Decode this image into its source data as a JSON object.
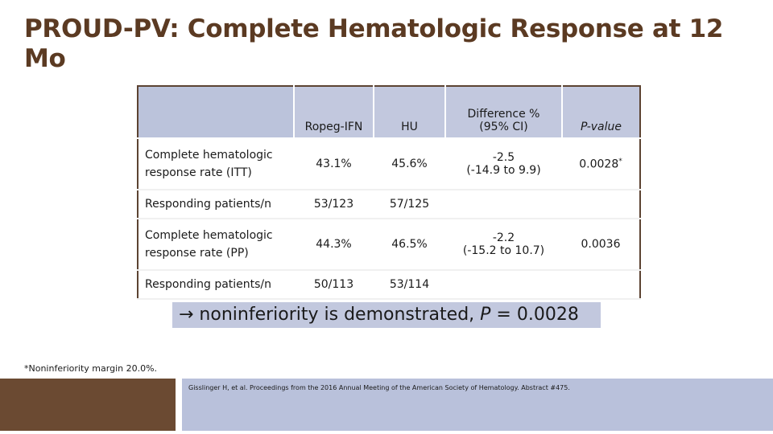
{
  "slide": {
    "title": "PROUD-PV: Complete Hematologic Response at 12 Mo"
  },
  "table": {
    "headers": {
      "col1": "Ropeg-IFN",
      "col2": "HU",
      "col3_line1": "Difference %",
      "col3_line2": "(95% CI)",
      "col4": "P-value"
    },
    "rows": {
      "itt_label_line1": "Complete hematologic",
      "itt_label_line2": "response rate  (ITT)",
      "itt_ropeg": "43.1%",
      "itt_hu": "45.6%",
      "itt_diff_line1": "-2.5",
      "itt_diff_line2": "(-14.9 to 9.9)",
      "itt_p": "0.0028",
      "itt_p_mark": "*",
      "resp1_label": "Responding patients/n",
      "resp1_ropeg": "53/123",
      "resp1_hu": "57/125",
      "pp_label_line1": "Complete hematologic",
      "pp_label_line2": "response rate (PP)",
      "pp_ropeg": "44.3%",
      "pp_hu": "46.5%",
      "pp_diff_line1": "-2.2",
      "pp_diff_line2": "(-15.2 to 10.7)",
      "pp_p": "0.0036",
      "resp2_label": "Responding patients/n",
      "resp2_ropeg": "50/113",
      "resp2_hu": "53/114"
    }
  },
  "callout": {
    "arrow": "→",
    "text_before": " noninferiority is demonstrated, ",
    "p_italic": "P",
    "text_after": " = 0.0028"
  },
  "footnote": "*Noninferiority margin 20.0%.",
  "reference": "Gisslinger H, et al. Proceedings from the 2016 Annual Meeting of the American Society of Hematology. Abstract #475.",
  "colors": {
    "title": "#5b3a22",
    "header_fill": "#c2c8de",
    "footer_brown": "#6b4a32",
    "footer_blue": "#b9c1db"
  }
}
